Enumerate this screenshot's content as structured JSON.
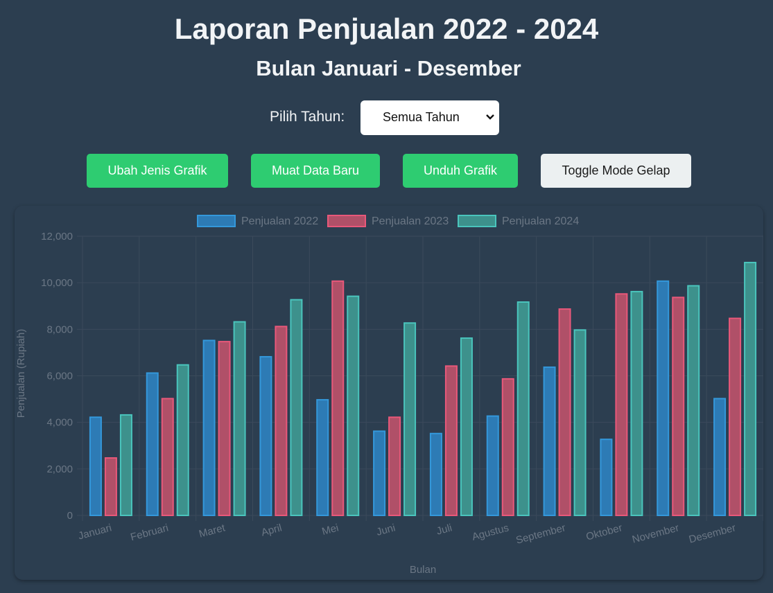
{
  "header": {
    "title": "Laporan Penjualan 2022 - 2024",
    "subtitle": "Bulan Januari - Desember"
  },
  "controls": {
    "year_label": "Pilih Tahun:",
    "year_selected": "Semua Tahun"
  },
  "buttons": {
    "change_type": "Ubah Jenis Grafik",
    "load_data": "Muat Data Baru",
    "download": "Unduh Grafik",
    "dark_mode": "Toggle Mode Gelap"
  },
  "colors": {
    "background": "#2c3e50",
    "button_green": "#2ecc71",
    "button_light": "#ecf0f1"
  },
  "chart_data": {
    "type": "bar",
    "xlabel": "Bulan",
    "ylabel": "Penjualan (Rupiah)",
    "ylim": [
      0,
      12000
    ],
    "yticks": [
      0,
      2000,
      4000,
      6000,
      8000,
      10000,
      12000
    ],
    "ytick_labels": [
      "0",
      "2,000",
      "4,000",
      "6,000",
      "8,000",
      "10,000",
      "12,000"
    ],
    "grid": true,
    "legend_position": "top",
    "categories": [
      "Januari",
      "Februari",
      "Maret",
      "April",
      "Mei",
      "Juni",
      "Juli",
      "Agustus",
      "September",
      "Oktober",
      "November",
      "Desember"
    ],
    "series": [
      {
        "name": "Penjualan 2022",
        "color": "#3498db",
        "fill": "#2d7bb5",
        "values": [
          4250,
          6150,
          7550,
          6850,
          5000,
          3650,
          3550,
          4300,
          6400,
          3300,
          10100,
          5050
        ]
      },
      {
        "name": "Penjualan 2023",
        "color": "#e9587a",
        "fill": "#b05068",
        "values": [
          2500,
          5050,
          7500,
          8150,
          10100,
          4250,
          6450,
          5900,
          8900,
          9550,
          9400,
          8500
        ]
      },
      {
        "name": "Penjualan 2024",
        "color": "#4ac5bd",
        "fill": "#3d918c",
        "values": [
          4350,
          6500,
          8350,
          9300,
          9450,
          8300,
          7650,
          9200,
          8000,
          9650,
          9900,
          10900
        ]
      }
    ]
  }
}
